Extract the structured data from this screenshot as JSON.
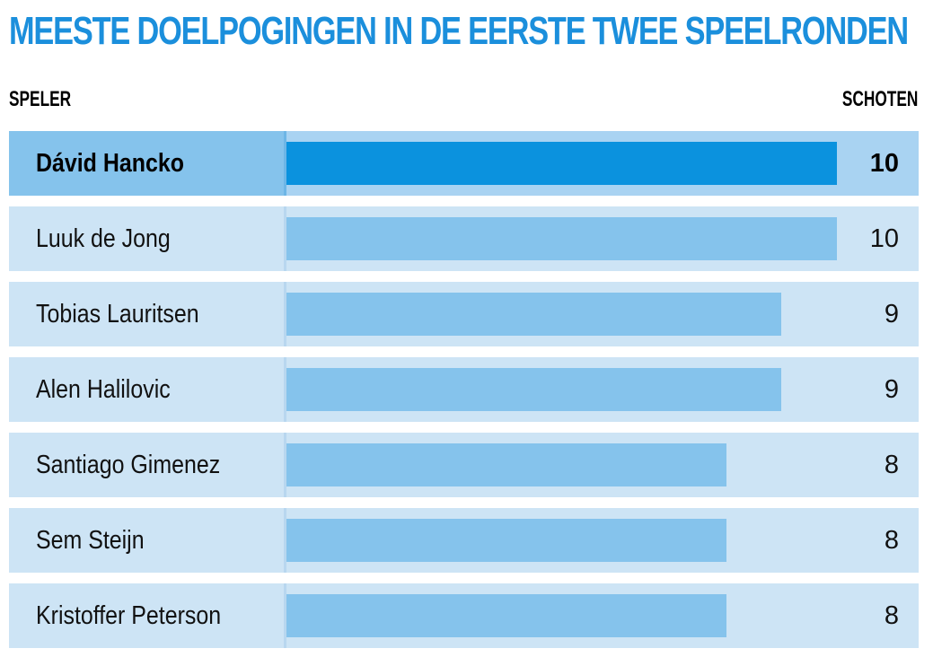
{
  "title": "MEESTE DOELPOGINGEN IN DE EERSTE TWEE SPEELRONDEN",
  "header": {
    "left_label": "SPELER",
    "right_label": "SCHOTEN"
  },
  "colors": {
    "title": "#1b8fdc",
    "bar": "#85c3ec",
    "bar_highlight": "#0b92de",
    "row_bg": "#cde4f5"
  },
  "chart_data": {
    "type": "bar",
    "orientation": "horizontal",
    "title": "MEESTE DOELPOGINGEN IN DE EERSTE TWEE SPEELRONDEN",
    "xlabel": "SCHOTEN",
    "ylabel": "SPELER",
    "xlim": [
      0,
      10
    ],
    "categories": [
      "Dávid Hancko",
      "Luuk de Jong",
      "Tobias Lauritsen",
      "Alen Halilovic",
      "Santiago Gimenez",
      "Sem Steijn",
      "Kristoffer Peterson"
    ],
    "values": [
      10,
      10,
      9,
      9,
      8,
      8,
      8
    ],
    "highlighted": [
      "Dávid Hancko"
    ],
    "grid": false,
    "legend": "none"
  }
}
